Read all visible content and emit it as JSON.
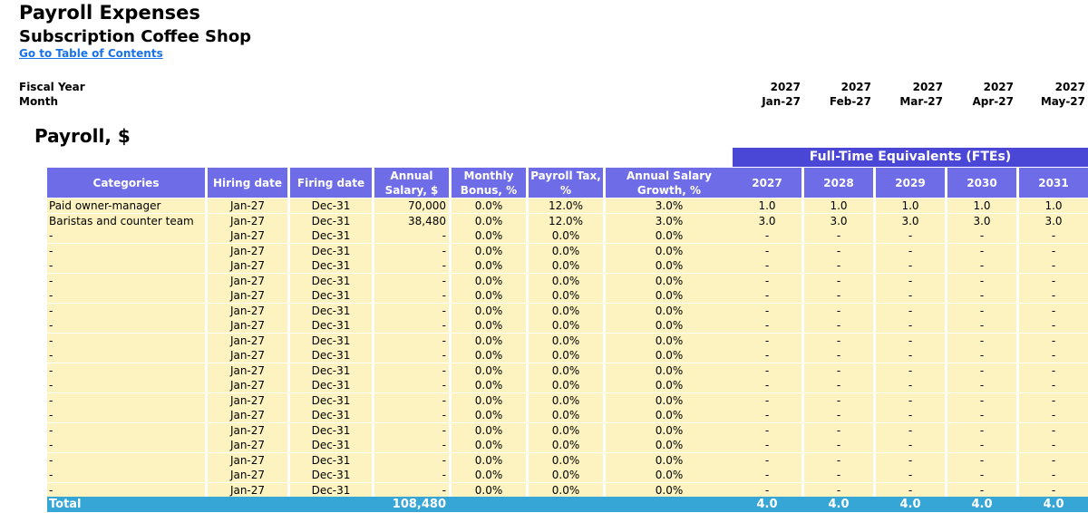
{
  "title": "Payroll Expenses",
  "subtitle": "Subscription Coffee Shop",
  "toc_link": "Go to Table of Contents",
  "timeline": {
    "fiscal_year_label": "Fiscal Year",
    "month_label": "Month",
    "columns": [
      {
        "year": "2027",
        "month": "Jan-27"
      },
      {
        "year": "2027",
        "month": "Feb-27"
      },
      {
        "year": "2027",
        "month": "Mar-27"
      },
      {
        "year": "2027",
        "month": "Apr-27"
      },
      {
        "year": "2027",
        "month": "May-27"
      }
    ]
  },
  "section_title": "Payroll, $",
  "fte_banner": "Full-Time Equivalents (FTEs)",
  "headers": {
    "categories": "Categories",
    "hiring": "Hiring date",
    "firing": "Firing date",
    "salary": "Annual Salary, $",
    "bonus": "Monthly Bonus, %",
    "tax": "Payroll Tax, %",
    "growth": "Annual Salary Growth, %",
    "years": [
      "2027",
      "2028",
      "2029",
      "2030",
      "2031"
    ]
  },
  "rows": [
    {
      "category": "Paid owner-manager",
      "hiring": "Jan-27",
      "firing": "Dec-31",
      "salary": "70,000",
      "bonus": "0.0%",
      "tax": "12.0%",
      "growth": "3.0%",
      "fte": [
        "1.0",
        "1.0",
        "1.0",
        "1.0",
        "1.0"
      ]
    },
    {
      "category": "Baristas and counter team",
      "hiring": "Jan-27",
      "firing": "Dec-31",
      "salary": "38,480",
      "bonus": "0.0%",
      "tax": "12.0%",
      "growth": "3.0%",
      "fte": [
        "3.0",
        "3.0",
        "3.0",
        "3.0",
        "3.0"
      ]
    },
    {
      "category": "-",
      "hiring": "Jan-27",
      "firing": "Dec-31",
      "salary": "-",
      "bonus": "0.0%",
      "tax": "0.0%",
      "growth": "0.0%",
      "fte": [
        "-",
        "-",
        "-",
        "-",
        "-"
      ]
    },
    {
      "category": "-",
      "hiring": "Jan-27",
      "firing": "Dec-31",
      "salary": "-",
      "bonus": "0.0%",
      "tax": "0.0%",
      "growth": "0.0%",
      "fte": [
        "-",
        "-",
        "-",
        "-",
        "-"
      ]
    },
    {
      "category": "-",
      "hiring": "Jan-27",
      "firing": "Dec-31",
      "salary": "-",
      "bonus": "0.0%",
      "tax": "0.0%",
      "growth": "0.0%",
      "fte": [
        "-",
        "-",
        "-",
        "-",
        "-"
      ]
    },
    {
      "category": "-",
      "hiring": "Jan-27",
      "firing": "Dec-31",
      "salary": "-",
      "bonus": "0.0%",
      "tax": "0.0%",
      "growth": "0.0%",
      "fte": [
        "-",
        "-",
        "-",
        "-",
        "-"
      ]
    },
    {
      "category": "-",
      "hiring": "Jan-27",
      "firing": "Dec-31",
      "salary": "-",
      "bonus": "0.0%",
      "tax": "0.0%",
      "growth": "0.0%",
      "fte": [
        "-",
        "-",
        "-",
        "-",
        "-"
      ]
    },
    {
      "category": "-",
      "hiring": "Jan-27",
      "firing": "Dec-31",
      "salary": "-",
      "bonus": "0.0%",
      "tax": "0.0%",
      "growth": "0.0%",
      "fte": [
        "-",
        "-",
        "-",
        "-",
        "-"
      ]
    },
    {
      "category": "-",
      "hiring": "Jan-27",
      "firing": "Dec-31",
      "salary": "-",
      "bonus": "0.0%",
      "tax": "0.0%",
      "growth": "0.0%",
      "fte": [
        "-",
        "-",
        "-",
        "-",
        "-"
      ]
    },
    {
      "category": "-",
      "hiring": "Jan-27",
      "firing": "Dec-31",
      "salary": "-",
      "bonus": "0.0%",
      "tax": "0.0%",
      "growth": "0.0%",
      "fte": [
        "-",
        "-",
        "-",
        "-",
        "-"
      ]
    },
    {
      "category": "-",
      "hiring": "Jan-27",
      "firing": "Dec-31",
      "salary": "-",
      "bonus": "0.0%",
      "tax": "0.0%",
      "growth": "0.0%",
      "fte": [
        "-",
        "-",
        "-",
        "-",
        "-"
      ]
    },
    {
      "category": "-",
      "hiring": "Jan-27",
      "firing": "Dec-31",
      "salary": "-",
      "bonus": "0.0%",
      "tax": "0.0%",
      "growth": "0.0%",
      "fte": [
        "-",
        "-",
        "-",
        "-",
        "-"
      ]
    },
    {
      "category": "-",
      "hiring": "Jan-27",
      "firing": "Dec-31",
      "salary": "-",
      "bonus": "0.0%",
      "tax": "0.0%",
      "growth": "0.0%",
      "fte": [
        "-",
        "-",
        "-",
        "-",
        "-"
      ]
    },
    {
      "category": "-",
      "hiring": "Jan-27",
      "firing": "Dec-31",
      "salary": "-",
      "bonus": "0.0%",
      "tax": "0.0%",
      "growth": "0.0%",
      "fte": [
        "-",
        "-",
        "-",
        "-",
        "-"
      ]
    },
    {
      "category": "-",
      "hiring": "Jan-27",
      "firing": "Dec-31",
      "salary": "-",
      "bonus": "0.0%",
      "tax": "0.0%",
      "growth": "0.0%",
      "fte": [
        "-",
        "-",
        "-",
        "-",
        "-"
      ]
    },
    {
      "category": "-",
      "hiring": "Jan-27",
      "firing": "Dec-31",
      "salary": "-",
      "bonus": "0.0%",
      "tax": "0.0%",
      "growth": "0.0%",
      "fte": [
        "-",
        "-",
        "-",
        "-",
        "-"
      ]
    },
    {
      "category": "-",
      "hiring": "Jan-27",
      "firing": "Dec-31",
      "salary": "-",
      "bonus": "0.0%",
      "tax": "0.0%",
      "growth": "0.0%",
      "fte": [
        "-",
        "-",
        "-",
        "-",
        "-"
      ]
    },
    {
      "category": "-",
      "hiring": "Jan-27",
      "firing": "Dec-31",
      "salary": "-",
      "bonus": "0.0%",
      "tax": "0.0%",
      "growth": "0.0%",
      "fte": [
        "-",
        "-",
        "-",
        "-",
        "-"
      ]
    },
    {
      "category": "-",
      "hiring": "Jan-27",
      "firing": "Dec-31",
      "salary": "-",
      "bonus": "0.0%",
      "tax": "0.0%",
      "growth": "0.0%",
      "fte": [
        "-",
        "-",
        "-",
        "-",
        "-"
      ]
    },
    {
      "category": "-",
      "hiring": "Jan-27",
      "firing": "Dec-31",
      "salary": "-",
      "bonus": "0.0%",
      "tax": "0.0%",
      "growth": "0.0%",
      "fte": [
        "-",
        "-",
        "-",
        "-",
        "-"
      ]
    }
  ],
  "total": {
    "label": "Total",
    "salary": "108,480",
    "fte": [
      "4.0",
      "4.0",
      "4.0",
      "4.0",
      "4.0"
    ]
  },
  "colors": {
    "header_bg": "#6f6ce8",
    "banner_bg": "#4a47d6",
    "input_bg": "#fdf3c0",
    "total_bg": "#36a6d6",
    "link": "#1a73e8"
  }
}
